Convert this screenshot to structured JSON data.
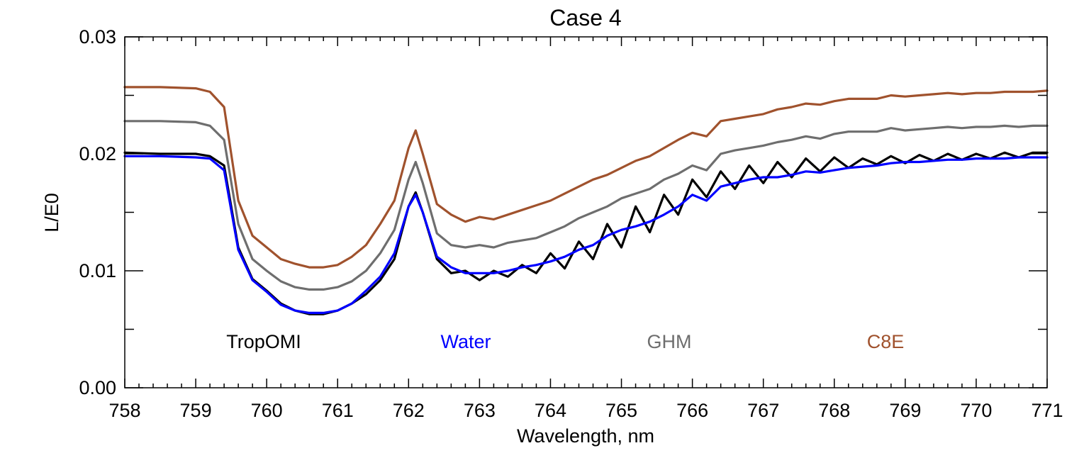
{
  "chart_data": {
    "type": "line",
    "title": "Case 4",
    "xlabel": "Wavelength, nm",
    "ylabel": "L/E0",
    "xlim": [
      758,
      771
    ],
    "ylim": [
      0.0,
      0.03
    ],
    "xticks": [
      758,
      759,
      760,
      761,
      762,
      763,
      764,
      765,
      766,
      767,
      768,
      769,
      770,
      771
    ],
    "xtick_labels": [
      "758",
      "759",
      "760",
      "761",
      "762",
      "763",
      "764",
      "765",
      "766",
      "767",
      "768",
      "769",
      "770",
      "771"
    ],
    "yticks": [
      0.0,
      0.01,
      0.02,
      0.03
    ],
    "ytick_labels": [
      "0.00",
      "0.01",
      "0.02",
      "0.03"
    ],
    "grid": false,
    "legend_placement": "inside-bottom",
    "x": [
      758.0,
      758.5,
      759.0,
      759.2,
      759.4,
      759.6,
      759.8,
      760.0,
      760.2,
      760.4,
      760.6,
      760.8,
      761.0,
      761.2,
      761.4,
      761.6,
      761.8,
      762.0,
      762.1,
      762.2,
      762.4,
      762.6,
      762.8,
      763.0,
      763.2,
      763.4,
      763.6,
      763.8,
      764.0,
      764.2,
      764.4,
      764.6,
      764.8,
      765.0,
      765.2,
      765.4,
      765.6,
      765.8,
      766.0,
      766.2,
      766.4,
      766.6,
      766.8,
      767.0,
      767.2,
      767.4,
      767.6,
      767.8,
      768.0,
      768.2,
      768.4,
      768.6,
      768.8,
      769.0,
      769.2,
      769.4,
      769.6,
      769.8,
      770.0,
      770.2,
      770.4,
      770.6,
      770.8,
      771.0
    ],
    "series": [
      {
        "name": "TropOMI",
        "color": "#000000",
        "values": [
          0.0201,
          0.02,
          0.02,
          0.0198,
          0.019,
          0.012,
          0.0093,
          0.0083,
          0.0072,
          0.0066,
          0.0063,
          0.0063,
          0.0066,
          0.0072,
          0.008,
          0.0092,
          0.011,
          0.0155,
          0.0167,
          0.015,
          0.011,
          0.0098,
          0.01,
          0.0092,
          0.01,
          0.0095,
          0.0105,
          0.0098,
          0.0115,
          0.0102,
          0.0125,
          0.011,
          0.014,
          0.012,
          0.0155,
          0.0133,
          0.0165,
          0.0148,
          0.0178,
          0.0163,
          0.0185,
          0.017,
          0.019,
          0.0175,
          0.0193,
          0.018,
          0.0196,
          0.0185,
          0.0197,
          0.0188,
          0.0196,
          0.0191,
          0.0198,
          0.0192,
          0.0199,
          0.0194,
          0.02,
          0.0195,
          0.02,
          0.0196,
          0.0201,
          0.0197,
          0.0201,
          0.0201
        ]
      },
      {
        "name": "Water",
        "color": "#0000ff",
        "values": [
          0.0198,
          0.0198,
          0.0197,
          0.0196,
          0.0186,
          0.0118,
          0.0092,
          0.0082,
          0.0071,
          0.0066,
          0.0064,
          0.0064,
          0.0066,
          0.0072,
          0.0083,
          0.0095,
          0.0115,
          0.0155,
          0.0165,
          0.015,
          0.0112,
          0.0103,
          0.0098,
          0.0098,
          0.0098,
          0.01,
          0.0103,
          0.0105,
          0.0108,
          0.0112,
          0.0118,
          0.0122,
          0.013,
          0.0135,
          0.0138,
          0.0142,
          0.0148,
          0.0155,
          0.0165,
          0.016,
          0.0172,
          0.0175,
          0.0178,
          0.018,
          0.018,
          0.0182,
          0.0185,
          0.0184,
          0.0186,
          0.0188,
          0.0189,
          0.019,
          0.0192,
          0.0193,
          0.0193,
          0.0194,
          0.0195,
          0.0195,
          0.0196,
          0.0196,
          0.0196,
          0.0197,
          0.0197,
          0.0197
        ]
      },
      {
        "name": "GHM",
        "color": "#6e6e6e",
        "values": [
          0.0228,
          0.0228,
          0.0227,
          0.0224,
          0.0212,
          0.014,
          0.011,
          0.01,
          0.0091,
          0.0086,
          0.0084,
          0.0084,
          0.0086,
          0.0091,
          0.01,
          0.0115,
          0.0135,
          0.0178,
          0.0193,
          0.0175,
          0.0132,
          0.0122,
          0.012,
          0.0122,
          0.012,
          0.0124,
          0.0126,
          0.0128,
          0.0133,
          0.0138,
          0.0145,
          0.015,
          0.0155,
          0.0162,
          0.0166,
          0.017,
          0.0178,
          0.0183,
          0.019,
          0.0186,
          0.02,
          0.0203,
          0.0205,
          0.0207,
          0.021,
          0.0212,
          0.0215,
          0.0213,
          0.0217,
          0.0219,
          0.0219,
          0.0219,
          0.0222,
          0.022,
          0.0221,
          0.0222,
          0.0223,
          0.0222,
          0.0223,
          0.0223,
          0.0224,
          0.0223,
          0.0224,
          0.0224
        ]
      },
      {
        "name": "C8E",
        "color": "#a0522d",
        "values": [
          0.0257,
          0.0257,
          0.0256,
          0.0253,
          0.024,
          0.016,
          0.013,
          0.012,
          0.011,
          0.0106,
          0.0103,
          0.0103,
          0.0105,
          0.0112,
          0.0122,
          0.014,
          0.016,
          0.0205,
          0.022,
          0.02,
          0.0157,
          0.0148,
          0.0142,
          0.0146,
          0.0144,
          0.0148,
          0.0152,
          0.0156,
          0.016,
          0.0166,
          0.0172,
          0.0178,
          0.0182,
          0.0188,
          0.0194,
          0.0198,
          0.0205,
          0.0212,
          0.0218,
          0.0215,
          0.0228,
          0.023,
          0.0232,
          0.0234,
          0.0238,
          0.024,
          0.0243,
          0.0242,
          0.0245,
          0.0247,
          0.0247,
          0.0247,
          0.025,
          0.0249,
          0.025,
          0.0251,
          0.0252,
          0.0251,
          0.0252,
          0.0252,
          0.0253,
          0.0253,
          0.0253,
          0.0254
        ]
      }
    ]
  }
}
